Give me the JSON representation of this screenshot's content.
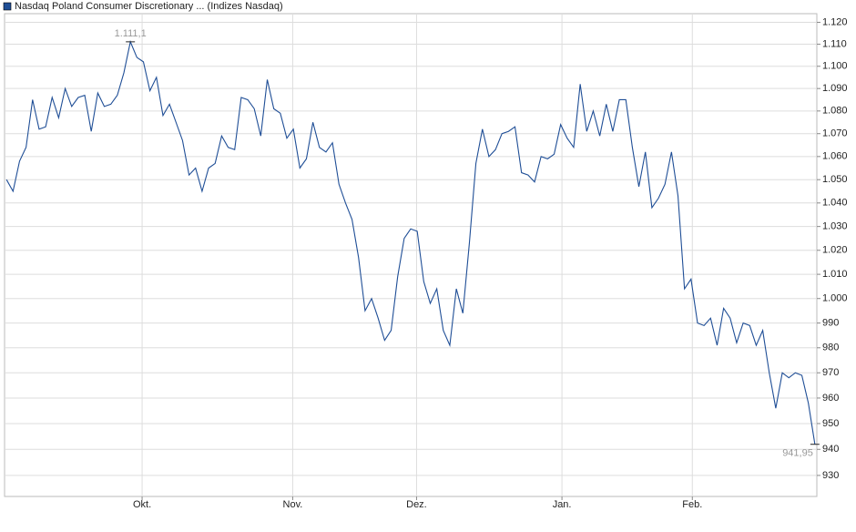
{
  "chart_data": {
    "type": "line",
    "log_scale": true,
    "grid": true,
    "legend": "top-left",
    "x": [
      0,
      1,
      2,
      3,
      4,
      5,
      6,
      7,
      8,
      9,
      10,
      11,
      12,
      13,
      14,
      15,
      16,
      17,
      18,
      19,
      20,
      21,
      22,
      23,
      24,
      25,
      26,
      27,
      28,
      29,
      30,
      31,
      32,
      33,
      34,
      35,
      36,
      37,
      38,
      39,
      40,
      41,
      42,
      43,
      44,
      45,
      46,
      47,
      48,
      49,
      50,
      51,
      52,
      53,
      54,
      55,
      56,
      57,
      58,
      59,
      60,
      61,
      62,
      63,
      64,
      65,
      66,
      67,
      68,
      69,
      70,
      71,
      72,
      73,
      74,
      75,
      76,
      77,
      78,
      79,
      80,
      81,
      82,
      83,
      84,
      85,
      86,
      87,
      88,
      89,
      90,
      91,
      92,
      93,
      94,
      95,
      96,
      97,
      98,
      99,
      100,
      101,
      102,
      103,
      104,
      105,
      106,
      107,
      108,
      109,
      110,
      111,
      112,
      113,
      114,
      115,
      116,
      117,
      118,
      119,
      120,
      121,
      122,
      123,
      124
    ],
    "series": [
      {
        "name": "Nasdaq Poland Consumer Discretionary ... (Indizes Nasdaq)",
        "color": "#1f4e96",
        "values": [
          1050,
          1045,
          1058,
          1064,
          1085,
          1072,
          1073,
          1086,
          1077,
          1090,
          1082,
          1086,
          1087,
          1071,
          1088,
          1082,
          1083,
          1087,
          1097,
          1111.1,
          1104,
          1102,
          1089,
          1095,
          1078,
          1083,
          1075,
          1067,
          1052,
          1055,
          1045,
          1055,
          1057,
          1069,
          1064,
          1063,
          1086,
          1085,
          1081,
          1069,
          1094,
          1081,
          1079,
          1068,
          1072,
          1055,
          1059,
          1075,
          1064,
          1062,
          1066,
          1048,
          1040,
          1033,
          1017,
          995,
          1000,
          992,
          983,
          987,
          1009,
          1025,
          1029,
          1028,
          1007,
          998,
          1004,
          987,
          981,
          1004,
          994,
          1023,
          1057,
          1072,
          1060,
          1063,
          1070,
          1071,
          1073,
          1053,
          1052,
          1049,
          1060,
          1059,
          1061,
          1074,
          1068,
          1064,
          1092,
          1071,
          1080,
          1069,
          1083,
          1071,
          1085,
          1085,
          1064,
          1047,
          1062,
          1038,
          1042,
          1048,
          1062,
          1043,
          1004,
          1008,
          990,
          989,
          992,
          981,
          996,
          992,
          982,
          990,
          989,
          981,
          987,
          970,
          956,
          970,
          968,
          970,
          969,
          958,
          941.95
        ],
        "value_labels": [
          null,
          null,
          null,
          null,
          null,
          null,
          null,
          null,
          null,
          null,
          null,
          null,
          null,
          null,
          null,
          null,
          null,
          null,
          null,
          "1.111,1",
          null,
          null,
          null,
          null,
          null,
          null,
          null,
          null,
          null,
          null,
          null,
          null,
          null,
          null,
          null,
          null,
          null,
          null,
          null,
          null,
          null,
          null,
          null,
          null,
          null,
          null,
          null,
          null,
          null,
          null,
          null,
          null,
          null,
          null,
          null,
          null,
          null,
          null,
          null,
          null,
          null,
          null,
          null,
          null,
          null,
          null,
          null,
          null,
          null,
          null,
          null,
          null,
          null,
          null,
          null,
          null,
          null,
          null,
          null,
          null,
          null,
          null,
          null,
          null,
          null,
          null,
          null,
          null,
          null,
          null,
          null,
          null,
          null,
          null,
          null,
          null,
          null,
          null,
          null,
          null,
          null,
          null,
          null,
          null,
          null,
          null,
          null,
          null,
          null,
          null,
          null,
          null,
          null,
          null,
          null,
          null,
          null,
          null,
          null,
          null,
          null,
          null,
          null,
          null,
          "941,95"
        ]
      }
    ],
    "xlim": [
      -0.3,
      124.3
    ],
    "xticks": [
      {
        "value": 20.8,
        "label": "Okt."
      },
      {
        "value": 43.9,
        "label": "Nov."
      },
      {
        "value": 62.9,
        "label": "Dez."
      },
      {
        "value": 85.2,
        "label": "Jan."
      },
      {
        "value": 105.2,
        "label": "Feb."
      }
    ],
    "ylim": [
      922,
      1124
    ],
    "yticks": [
      930,
      940,
      950,
      960,
      970,
      980,
      990,
      {
        "value": 1000,
        "label": "1.000"
      },
      {
        "value": 1010,
        "label": "1.010"
      },
      {
        "value": 1020,
        "label": "1.020"
      },
      {
        "value": 1030,
        "label": "1.030"
      },
      {
        "value": 1040,
        "label": "1.040"
      },
      {
        "value": 1050,
        "label": "1.050"
      },
      {
        "value": 1060,
        "label": "1.060"
      },
      {
        "value": 1070,
        "label": "1.070"
      },
      {
        "value": 1080,
        "label": "1.080"
      },
      {
        "value": 1090,
        "label": "1.090"
      },
      {
        "value": 1100,
        "label": "1.100"
      },
      {
        "value": 1110,
        "label": "1.110"
      },
      {
        "value": 1120,
        "label": "1.120"
      }
    ]
  }
}
